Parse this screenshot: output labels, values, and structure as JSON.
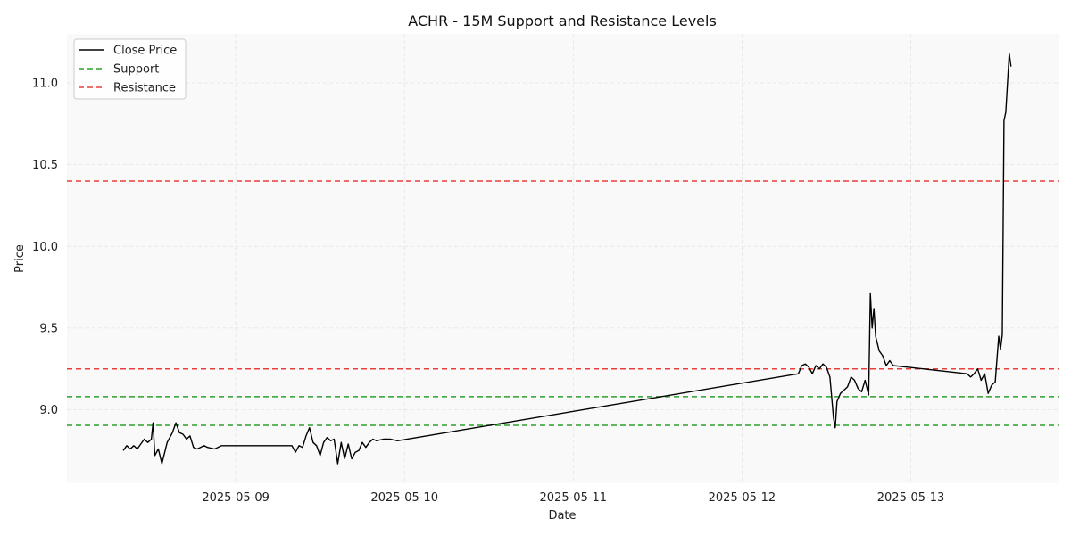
{
  "chart_data": {
    "type": "line",
    "title": "ACHR - 15M Support and Resistance Levels",
    "xlabel": "Date",
    "ylabel": "Price",
    "xlim": [
      "2025-05-08 00:00",
      "2025-05-13 21:00"
    ],
    "ylim": [
      8.55,
      11.3
    ],
    "x_ticks": [
      "2025-05-09",
      "2025-05-10",
      "2025-05-11",
      "2025-05-12",
      "2025-05-13"
    ],
    "y_ticks": [
      9.0,
      9.5,
      10.0,
      10.5,
      11.0
    ],
    "grid": true,
    "legend_position": "top-left",
    "legend": [
      "Close Price",
      "Support",
      "Resistance"
    ],
    "colors": {
      "close": "#000000",
      "support": "#2ca02c",
      "resistance": "#e8413b",
      "plot_bg": "#f9f9f9"
    },
    "support_levels": [
      8.905,
      9.08
    ],
    "resistance_levels": [
      9.25,
      10.4
    ],
    "series": [
      {
        "name": "Close Price",
        "points": [
          [
            "2025-05-08 08:00",
            8.75
          ],
          [
            "2025-05-08 08:30",
            8.78
          ],
          [
            "2025-05-08 09:00",
            8.76
          ],
          [
            "2025-05-08 09:30",
            8.78
          ],
          [
            "2025-05-08 10:00",
            8.76
          ],
          [
            "2025-05-08 10:30",
            8.79
          ],
          [
            "2025-05-08 11:00",
            8.82
          ],
          [
            "2025-05-08 11:30",
            8.8
          ],
          [
            "2025-05-08 12:00",
            8.82
          ],
          [
            "2025-05-08 12:15",
            8.92
          ],
          [
            "2025-05-08 12:30",
            8.72
          ],
          [
            "2025-05-08 13:00",
            8.76
          ],
          [
            "2025-05-08 13:30",
            8.67
          ],
          [
            "2025-05-08 14:15",
            8.8
          ],
          [
            "2025-05-08 15:00",
            8.86
          ],
          [
            "2025-05-08 15:30",
            8.92
          ],
          [
            "2025-05-08 16:00",
            8.86
          ],
          [
            "2025-05-08 16:30",
            8.85
          ],
          [
            "2025-05-08 17:00",
            8.82
          ],
          [
            "2025-05-08 17:30",
            8.84
          ],
          [
            "2025-05-08 18:00",
            8.77
          ],
          [
            "2025-05-08 18:30",
            8.76
          ],
          [
            "2025-05-08 19:00",
            8.77
          ],
          [
            "2025-05-08 19:30",
            8.78
          ],
          [
            "2025-05-08 20:00",
            8.77
          ],
          [
            "2025-05-08 21:00",
            8.76
          ],
          [
            "2025-05-08 22:00",
            8.78
          ],
          [
            "2025-05-09 08:00",
            8.78
          ],
          [
            "2025-05-09 08:30",
            8.74
          ],
          [
            "2025-05-09 09:00",
            8.78
          ],
          [
            "2025-05-09 09:30",
            8.77
          ],
          [
            "2025-05-09 10:00",
            8.84
          ],
          [
            "2025-05-09 10:30",
            8.89
          ],
          [
            "2025-05-09 11:00",
            8.8
          ],
          [
            "2025-05-09 11:30",
            8.78
          ],
          [
            "2025-05-09 12:00",
            8.72
          ],
          [
            "2025-05-09 12:30",
            8.8
          ],
          [
            "2025-05-09 13:00",
            8.83
          ],
          [
            "2025-05-09 13:30",
            8.81
          ],
          [
            "2025-05-09 14:00",
            8.82
          ],
          [
            "2025-05-09 14:30",
            8.67
          ],
          [
            "2025-05-09 15:00",
            8.8
          ],
          [
            "2025-05-09 15:30",
            8.7
          ],
          [
            "2025-05-09 16:00",
            8.79
          ],
          [
            "2025-05-09 16:30",
            8.7
          ],
          [
            "2025-05-09 17:00",
            8.74
          ],
          [
            "2025-05-09 17:30",
            8.75
          ],
          [
            "2025-05-09 18:00",
            8.8
          ],
          [
            "2025-05-09 18:30",
            8.77
          ],
          [
            "2025-05-09 19:00",
            8.8
          ],
          [
            "2025-05-09 19:30",
            8.82
          ],
          [
            "2025-05-09 20:00",
            8.81
          ],
          [
            "2025-05-09 21:00",
            8.82
          ],
          [
            "2025-05-09 22:00",
            8.82
          ],
          [
            "2025-05-09 23:00",
            8.81
          ],
          [
            "2025-05-12 08:00",
            9.22
          ],
          [
            "2025-05-12 08:30",
            9.27
          ],
          [
            "2025-05-12 09:00",
            9.28
          ],
          [
            "2025-05-12 09:30",
            9.26
          ],
          [
            "2025-05-12 10:00",
            9.22
          ],
          [
            "2025-05-12 10:30",
            9.27
          ],
          [
            "2025-05-12 11:00",
            9.25
          ],
          [
            "2025-05-12 11:30",
            9.28
          ],
          [
            "2025-05-12 12:00",
            9.26
          ],
          [
            "2025-05-12 12:30",
            9.2
          ],
          [
            "2025-05-12 13:00",
            8.95
          ],
          [
            "2025-05-12 13:15",
            8.89
          ],
          [
            "2025-05-12 13:30",
            9.05
          ],
          [
            "2025-05-12 14:00",
            9.1
          ],
          [
            "2025-05-12 14:30",
            9.12
          ],
          [
            "2025-05-12 15:00",
            9.14
          ],
          [
            "2025-05-12 15:30",
            9.2
          ],
          [
            "2025-05-12 16:00",
            9.18
          ],
          [
            "2025-05-12 16:30",
            9.13
          ],
          [
            "2025-05-12 17:00",
            9.11
          ],
          [
            "2025-05-12 17:30",
            9.18
          ],
          [
            "2025-05-12 18:00",
            9.09
          ],
          [
            "2025-05-12 18:15",
            9.71
          ],
          [
            "2025-05-12 18:30",
            9.5
          ],
          [
            "2025-05-12 18:45",
            9.62
          ],
          [
            "2025-05-12 19:00",
            9.45
          ],
          [
            "2025-05-12 19:30",
            9.36
          ],
          [
            "2025-05-12 20:00",
            9.33
          ],
          [
            "2025-05-12 20:30",
            9.27
          ],
          [
            "2025-05-12 21:00",
            9.3
          ],
          [
            "2025-05-12 21:30",
            9.27
          ],
          [
            "2025-05-13 08:00",
            9.22
          ],
          [
            "2025-05-13 08:30",
            9.2
          ],
          [
            "2025-05-13 09:00",
            9.22
          ],
          [
            "2025-05-13 09:30",
            9.25
          ],
          [
            "2025-05-13 10:00",
            9.18
          ],
          [
            "2025-05-13 10:30",
            9.22
          ],
          [
            "2025-05-13 11:00",
            9.1
          ],
          [
            "2025-05-13 11:30",
            9.15
          ],
          [
            "2025-05-13 12:00",
            9.17
          ],
          [
            "2025-05-13 12:30",
            9.45
          ],
          [
            "2025-05-13 12:45",
            9.37
          ],
          [
            "2025-05-13 13:00",
            9.46
          ],
          [
            "2025-05-13 13:15",
            10.77
          ],
          [
            "2025-05-13 13:30",
            10.82
          ],
          [
            "2025-05-13 14:00",
            11.18
          ],
          [
            "2025-05-13 14:15",
            11.1
          ]
        ]
      }
    ]
  }
}
